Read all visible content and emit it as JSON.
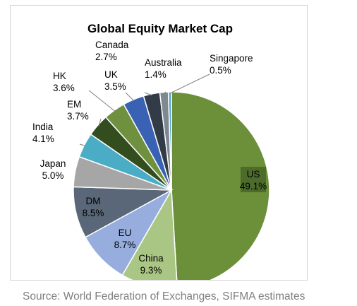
{
  "chart_data": {
    "type": "pie",
    "title": "Global Equity Market Cap",
    "slices": [
      {
        "label": "US",
        "value": 49.1,
        "display": "49.1%",
        "color": "#6c8f3a"
      },
      {
        "label": "China",
        "value": 9.3,
        "display": "9.3%",
        "color": "#aac684"
      },
      {
        "label": "EU",
        "value": 8.7,
        "display": "8.7%",
        "color": "#96addd"
      },
      {
        "label": "DM",
        "value": 8.5,
        "display": "8.5%",
        "color": "#5a6778"
      },
      {
        "label": "Japan",
        "value": 5.0,
        "display": "5.0%",
        "color": "#a6a6a6"
      },
      {
        "label": "India",
        "value": 4.1,
        "display": "4.1%",
        "color": "#4bacc6"
      },
      {
        "label": "EM",
        "value": 3.7,
        "display": "3.7%",
        "color": "#344d1f"
      },
      {
        "label": "HK",
        "value": 3.6,
        "display": "3.6%",
        "color": "#6f913f"
      },
      {
        "label": "UK",
        "value": 3.5,
        "display": "3.5%",
        "color": "#3a62b4"
      },
      {
        "label": "Canada",
        "value": 2.7,
        "display": "2.7%",
        "color": "#323c48"
      },
      {
        "label": "Australia",
        "value": 1.4,
        "display": "1.4%",
        "color": "#7f8890"
      },
      {
        "label": "Singapore",
        "value": 0.5,
        "display": "0.5%",
        "color": "#52a7c8"
      }
    ],
    "legend": "none"
  },
  "source": "Source: World Federation of Exchanges, SIFMA estimates"
}
